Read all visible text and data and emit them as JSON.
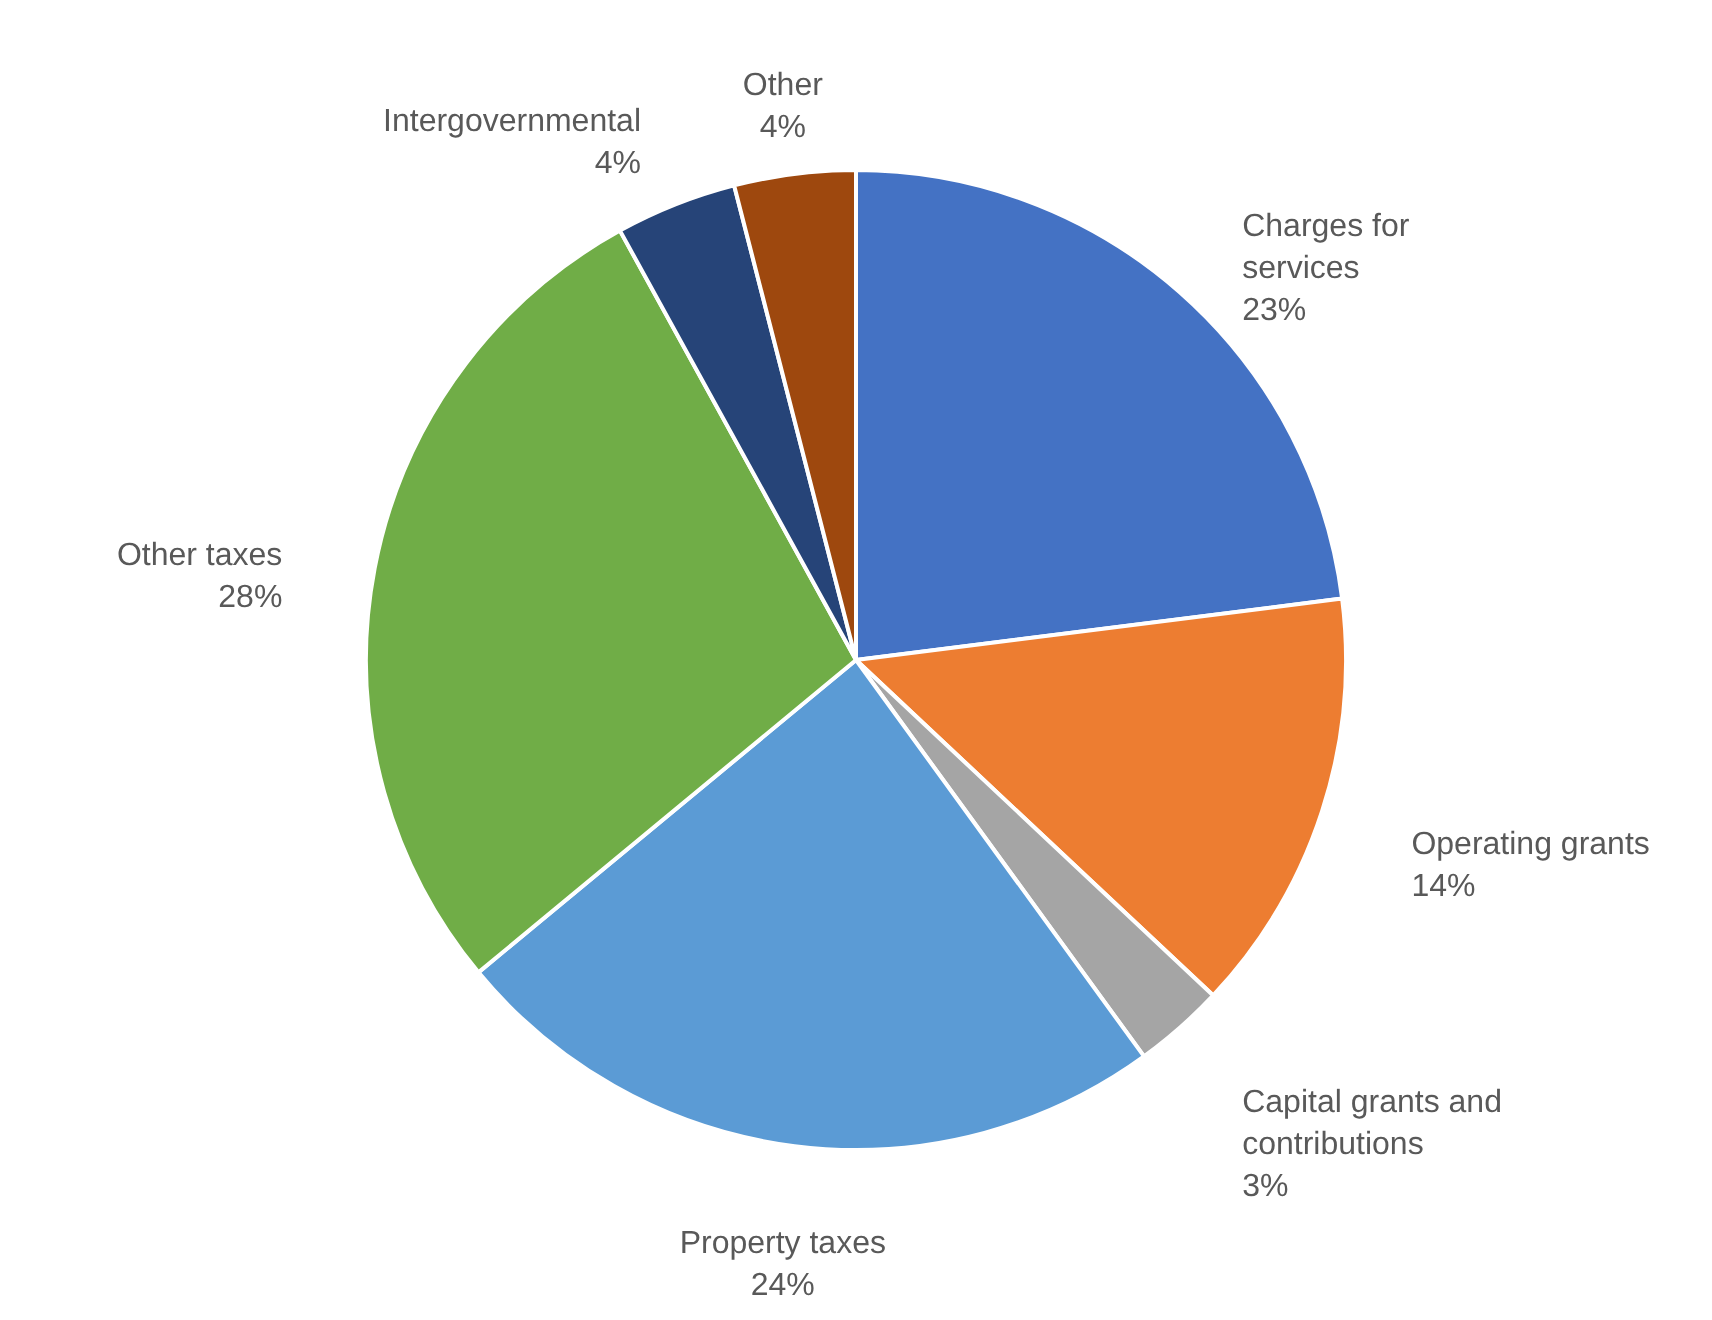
{
  "chart_data": {
    "type": "pie",
    "categories": [
      "Charges for services",
      "Operating grants",
      "Capital grants and contributions",
      "Property taxes",
      "Other taxes",
      "Intergovernmental",
      "Other"
    ],
    "values": [
      23,
      14,
      3,
      24,
      28,
      4,
      4
    ],
    "value_labels": [
      "23%",
      "14%",
      "3%",
      "24%",
      "28%",
      "4%",
      "4%"
    ],
    "colors": [
      "#4472c4",
      "#ed7d31",
      "#a5a5a5",
      "#5b9bd5",
      "#70ad47",
      "#264478",
      "#9e480e"
    ]
  }
}
